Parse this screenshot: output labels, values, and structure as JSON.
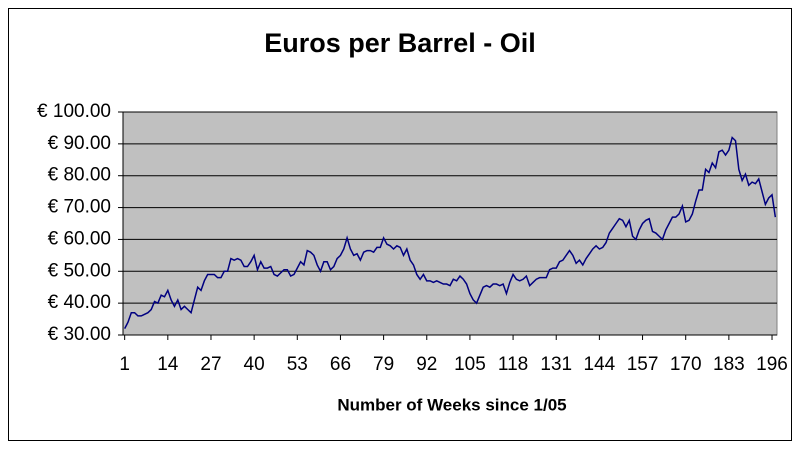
{
  "chart_data": {
    "type": "line",
    "title": "Euros per Barrel - Oil",
    "x_label": "Number of Weeks since 1/05",
    "x": [
      1,
      2,
      3,
      4,
      5,
      6,
      7,
      8,
      9,
      10,
      11,
      12,
      13,
      14,
      15,
      16,
      17,
      18,
      19,
      20,
      21,
      22,
      23,
      24,
      25,
      26,
      27,
      28,
      29,
      30,
      31,
      32,
      33,
      34,
      35,
      36,
      37,
      38,
      39,
      40,
      41,
      42,
      43,
      44,
      45,
      46,
      47,
      48,
      49,
      50,
      51,
      52,
      53,
      54,
      55,
      56,
      57,
      58,
      59,
      60,
      61,
      62,
      63,
      64,
      65,
      66,
      67,
      68,
      69,
      70,
      71,
      72,
      73,
      74,
      75,
      76,
      77,
      78,
      79,
      80,
      81,
      82,
      83,
      84,
      85,
      86,
      87,
      88,
      89,
      90,
      91,
      92,
      93,
      94,
      95,
      96,
      97,
      98,
      99,
      100,
      101,
      102,
      103,
      104,
      105,
      106,
      107,
      108,
      109,
      110,
      111,
      112,
      113,
      114,
      115,
      116,
      117,
      118,
      119,
      120,
      121,
      122,
      123,
      124,
      125,
      126,
      127,
      128,
      129,
      130,
      131,
      132,
      133,
      134,
      135,
      136,
      137,
      138,
      139,
      140,
      141,
      142,
      143,
      144,
      145,
      146,
      147,
      148,
      149,
      150,
      151,
      152,
      153,
      154,
      155,
      156,
      157,
      158,
      159,
      160,
      161,
      162,
      163,
      164,
      165,
      166,
      167,
      168,
      169,
      170,
      171,
      172,
      173,
      174,
      175,
      176,
      177,
      178,
      179,
      180,
      181,
      182,
      183,
      184,
      185,
      186,
      187,
      188,
      189,
      190,
      191,
      192,
      193,
      194,
      195,
      196,
      197
    ],
    "series": [
      {
        "name": "Euros per Barrel",
        "color": "#000080",
        "values": [
          32,
          34,
          37,
          37,
          36,
          36,
          36.5,
          37,
          38,
          40.5,
          40,
          42.5,
          42,
          44,
          41,
          39,
          41,
          38,
          39,
          38,
          37,
          41,
          45,
          44,
          47,
          49,
          49,
          49,
          48,
          48,
          50,
          50,
          54,
          53.5,
          54,
          53.5,
          51.5,
          51.5,
          53,
          55,
          50.5,
          53,
          51,
          51,
          51.5,
          49,
          48.5,
          49.5,
          50.5,
          50.5,
          48.5,
          49,
          51,
          53,
          52,
          56.5,
          56,
          55,
          52,
          50,
          53,
          53,
          50.5,
          51.5,
          54,
          55,
          57,
          60.5,
          57,
          55,
          55.5,
          53.5,
          56,
          56.5,
          56.5,
          56,
          57.5,
          57.5,
          60.5,
          58.5,
          58,
          57,
          58,
          57.5,
          55,
          57,
          53.5,
          52,
          49,
          47.5,
          49,
          47,
          47,
          46.5,
          47,
          46.5,
          46,
          46,
          45.5,
          47.5,
          47,
          48.5,
          47.5,
          46,
          43,
          41,
          40,
          42.5,
          45,
          45.5,
          45,
          46,
          46,
          45.5,
          46,
          43,
          46.5,
          49,
          47.5,
          47,
          47.5,
          48.5,
          45.5,
          46.5,
          47.5,
          48,
          48,
          48,
          50.5,
          51,
          51,
          53,
          53.5,
          55,
          56.5,
          55,
          52.5,
          53.5,
          52,
          54,
          55.5,
          57,
          58,
          57,
          57.5,
          59,
          62,
          63.5,
          65,
          66.5,
          66,
          64,
          66,
          61,
          60,
          63,
          65,
          66,
          66.5,
          62.5,
          62,
          61,
          60,
          63,
          65,
          67,
          67,
          68,
          70.5,
          65.5,
          66,
          68,
          72,
          75.5,
          75.5,
          82,
          81,
          84,
          82.5,
          87.5,
          88,
          86.5,
          88,
          92,
          91,
          82,
          78.5,
          80.5,
          77,
          78,
          77.5,
          79,
          75,
          71,
          73,
          74,
          67
        ]
      }
    ],
    "xlim": [
      0.5,
      197.5
    ],
    "xticks": [
      1,
      14,
      27,
      40,
      53,
      66,
      79,
      92,
      105,
      118,
      131,
      144,
      157,
      170,
      183,
      196
    ],
    "ylim": [
      30,
      100
    ],
    "yticks": [
      {
        "value": 30,
        "label": "€ 30.00"
      },
      {
        "value": 40,
        "label": "€ 40.00"
      },
      {
        "value": 50,
        "label": "€ 50.00"
      },
      {
        "value": 60,
        "label": "€ 60.00"
      },
      {
        "value": 70,
        "label": "€ 70.00"
      },
      {
        "value": 80,
        "label": "€ 80.00"
      },
      {
        "value": 90,
        "label": "€ 90.00"
      },
      {
        "value": 100,
        "label": "€ 100.00"
      }
    ],
    "grid": true,
    "plot_background": "#c0c0c0"
  }
}
